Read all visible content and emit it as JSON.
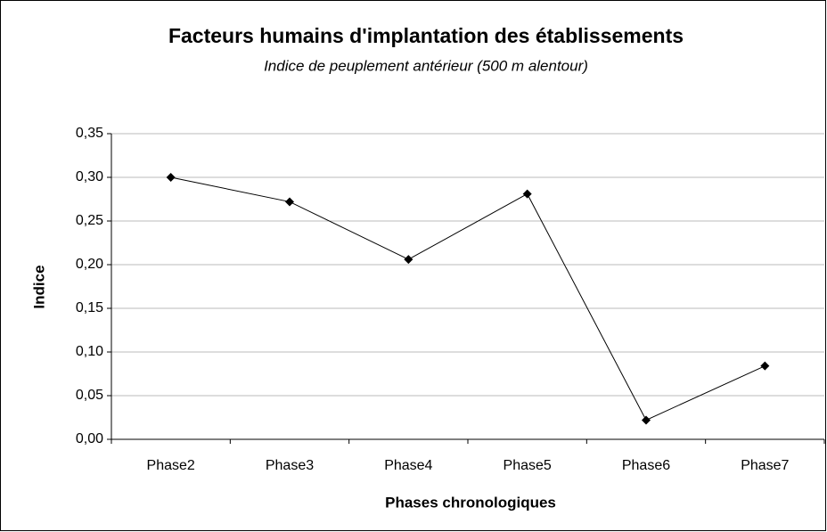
{
  "chart_data": {
    "type": "line",
    "title": "Facteurs humains d'implantation des établissements",
    "subtitle": "Indice de peuplement antérieur (500 m alentour)",
    "x_label": "Phases chronologiques",
    "y_label": "Indice",
    "categories": [
      "Phase2",
      "Phase3",
      "Phase4",
      "Phase5",
      "Phase6",
      "Phase7"
    ],
    "values": [
      0.3,
      0.272,
      0.206,
      0.281,
      0.022,
      0.084
    ],
    "color": "#000000",
    "ylim": [
      0,
      0.35
    ],
    "yticks": [
      {
        "value": 0,
        "label": "0,00"
      },
      {
        "value": 0.05,
        "label": "0,05"
      },
      {
        "value": 0.1,
        "label": "0,10"
      },
      {
        "value": 0.15,
        "label": "0,15"
      },
      {
        "value": 0.2,
        "label": "0,20"
      },
      {
        "value": 0.25,
        "label": "0,25"
      },
      {
        "value": 0.3,
        "label": "0,30"
      },
      {
        "value": 0.35,
        "label": "0,35"
      }
    ],
    "grid": true
  }
}
